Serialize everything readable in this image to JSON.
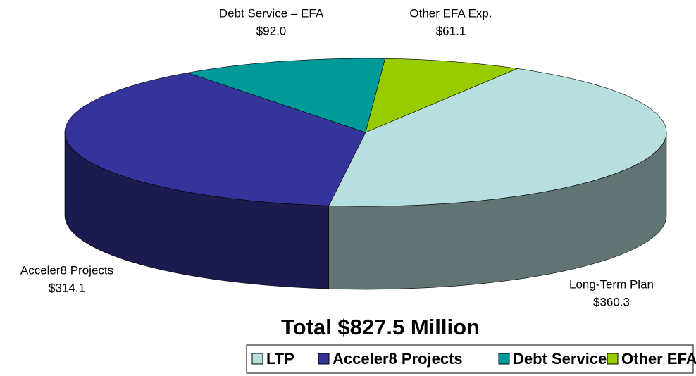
{
  "chart_data": {
    "type": "pie",
    "title": "Total $827.5 Million",
    "categories": [
      "LTP",
      "Acceler8 Projects",
      "Debt Service",
      "Other EFA Expenditures"
    ],
    "slice_labels": [
      "Long-Term Plan",
      "Acceler8 Projects",
      "Debt Service – EFA",
      "Other EFA Exp."
    ],
    "values": [
      360.3,
      314.1,
      92.0,
      61.1
    ],
    "value_labels": [
      "$360.3",
      "$314.1",
      "$92.0",
      "$61.1"
    ],
    "colors": [
      "#b8dfe0",
      "#34349a",
      "#009999",
      "#99cc00"
    ],
    "legend": "bottom"
  }
}
